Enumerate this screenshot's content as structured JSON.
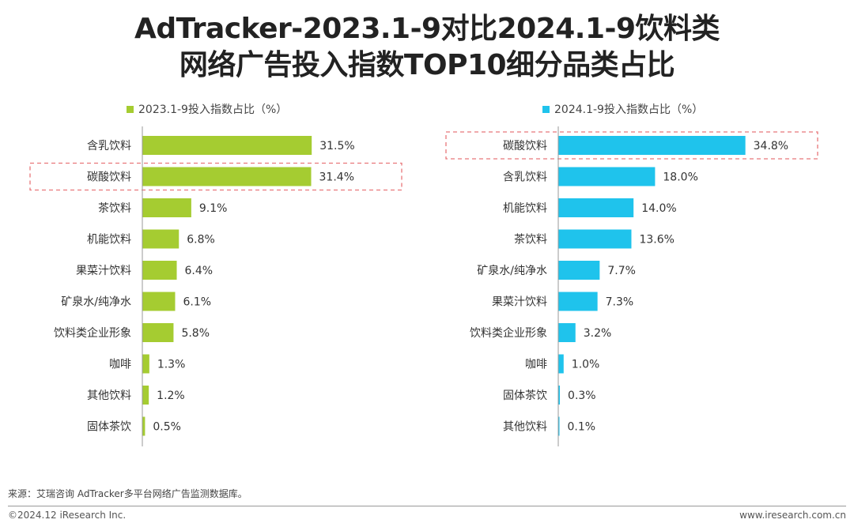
{
  "title": {
    "line1": "AdTracker-2023.1-9对比2024.1-9饮料类",
    "line2": "网络广告投入指数TOP10细分品类占比"
  },
  "colors": {
    "series_2023": "#a5cc31",
    "series_2024": "#1fc3ec",
    "highlight_border": "#e8777a",
    "axis": "#999999"
  },
  "chart_data": [
    {
      "type": "bar",
      "orientation": "horizontal",
      "legend": "2023.1-9投入指数占比（%）",
      "categories": [
        "含乳饮料",
        "碳酸饮料",
        "茶饮料",
        "机能饮料",
        "果菜汁饮料",
        "矿泉水/纯净水",
        "饮料类企业形象",
        "咖啡",
        "其他饮料",
        "固体茶饮"
      ],
      "values": [
        31.5,
        31.4,
        9.1,
        6.8,
        6.4,
        6.1,
        5.8,
        1.3,
        1.2,
        0.5
      ],
      "value_labels": [
        "31.5%",
        "31.4%",
        "9.1%",
        "6.8%",
        "6.4%",
        "6.1%",
        "5.8%",
        "1.3%",
        "1.2%",
        "0.5%"
      ],
      "highlight_index": 1,
      "xlim": [
        0,
        35
      ]
    },
    {
      "type": "bar",
      "orientation": "horizontal",
      "legend": "2024.1-9投入指数占比（%）",
      "categories": [
        "碳酸饮料",
        "含乳饮料",
        "机能饮料",
        "茶饮料",
        "矿泉水/纯净水",
        "果菜汁饮料",
        "饮料类企业形象",
        "咖啡",
        "固体茶饮",
        "其他饮料"
      ],
      "values": [
        34.8,
        18.0,
        14.0,
        13.6,
        7.7,
        7.3,
        3.2,
        1.0,
        0.3,
        0.1
      ],
      "value_labels": [
        "34.8%",
        "18.0%",
        "14.0%",
        "13.6%",
        "7.7%",
        "7.3%",
        "3.2%",
        "1.0%",
        "0.3%",
        "0.1%"
      ],
      "highlight_index": 0,
      "xlim": [
        0,
        35
      ]
    }
  ],
  "source": "来源：艾瑞咨询 AdTracker多平台网络广告监测数据库。",
  "footer": {
    "copyright": "©2024.12 iResearch Inc.",
    "website": "www.iresearch.com.cn"
  }
}
